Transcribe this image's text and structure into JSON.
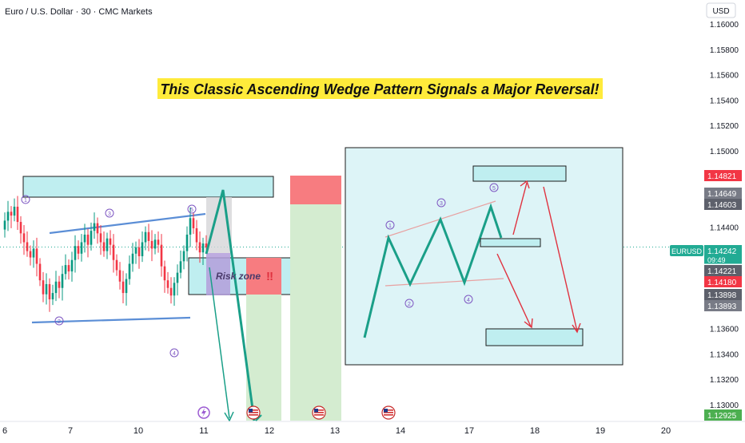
{
  "header": {
    "symbol_title": "Euro / U.S. Dollar · 30 · CMC Markets",
    "currency": "USD"
  },
  "headline": "This Classic Ascending Wedge Pattern Signals a Major Reversal!",
  "annotation": {
    "risk_zone": "Risk zone",
    "risk_mark": "‼",
    "wave_labels": [
      "1",
      "2",
      "3",
      "4",
      "5"
    ]
  },
  "chart_data": {
    "type": "line",
    "instrument": "EURUSD",
    "y_ticks": [
      1.16,
      1.158,
      1.156,
      1.154,
      1.152,
      1.15,
      1.148,
      1.146,
      1.144,
      1.142,
      1.14,
      1.138,
      1.136,
      1.134,
      1.132,
      1.13
    ],
    "y_tick_labels": [
      "1.16000",
      "1.15800",
      "1.15600",
      "1.15400",
      "1.15200",
      "1.15000",
      "1.14800",
      "1.14600",
      "1.14400",
      "1.14200",
      "1.14000",
      "1.13800",
      "1.13600",
      "1.13400",
      "1.13200",
      "1.13000"
    ],
    "x_tick_labels": [
      "6",
      "7",
      "10",
      "11",
      "12",
      "13",
      "14",
      "17",
      "18",
      "19",
      "20"
    ],
    "price_badges": [
      {
        "label": "1.14821",
        "value": 1.14821,
        "color": "#f23645"
      },
      {
        "label": "1.14649",
        "value": 1.14649,
        "color": "#787b86"
      },
      {
        "label": "1.14603",
        "value": 1.14603,
        "color": "#5d606b"
      },
      {
        "label": "EURUSD",
        "value": 1.14242,
        "color": "#22ab94"
      },
      {
        "label": "1.14242",
        "value": 1.14242,
        "color": "#22ab94"
      },
      {
        "label": "09:49",
        "value": 1.14242,
        "color": "#22ab94"
      },
      {
        "label": "1.14221",
        "value": 1.14221,
        "color": "#5d606b"
      },
      {
        "label": "1.14180",
        "value": 1.1418,
        "color": "#f23645"
      },
      {
        "label": "1.13898",
        "value": 1.13898,
        "color": "#5d606b"
      },
      {
        "label": "1.13893",
        "value": 1.13893,
        "color": "#787b86"
      },
      {
        "label": "1.12925",
        "value": 1.12925,
        "color": "#4caf50"
      }
    ],
    "current_price": 1.14242,
    "price_series": [
      1.1438,
      1.1445,
      1.1452,
      1.1449,
      1.1456,
      1.1444,
      1.1435,
      1.1428,
      1.1421,
      1.1416,
      1.1423,
      1.1411,
      1.1398,
      1.1387,
      1.1395,
      1.1383,
      1.1388,
      1.1397,
      1.1392,
      1.1403,
      1.141,
      1.1405,
      1.1414,
      1.1425,
      1.1419,
      1.1428,
      1.1434,
      1.1426,
      1.1437,
      1.1443,
      1.1435,
      1.1428,
      1.1421,
      1.1431,
      1.1426,
      1.1414,
      1.1406,
      1.1397,
      1.1388,
      1.1399,
      1.1411,
      1.1419,
      1.1424,
      1.1417,
      1.1428,
      1.1436,
      1.1429,
      1.1423,
      1.143,
      1.1426,
      1.1409,
      1.1398,
      1.1392,
      1.1386,
      1.1396,
      1.1404,
      1.1413,
      1.1421,
      1.1434,
      1.1447,
      1.1439,
      1.1428,
      1.142,
      1.1427,
      1.1424
    ]
  },
  "colors": {
    "headline_bg": "#ffeb3b",
    "zone_fill": "#bfeef0",
    "stop_fill": "#f77c80",
    "target_fill": "#d4ecd0",
    "wave_line": "#1a9f88",
    "arrow_red": "#e0323f",
    "wedge_line": "#5b8ed6",
    "label_purple": "#7e57c2",
    "up_candle": "#089981",
    "down_candle": "#f23645"
  }
}
